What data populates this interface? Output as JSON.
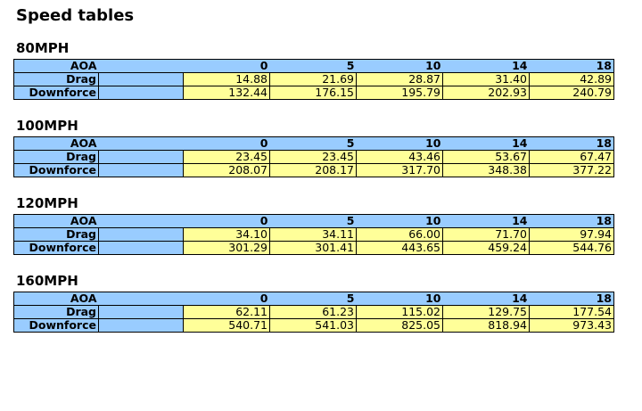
{
  "title": "Speed tables",
  "sections": [
    {
      "heading": "80MPH",
      "header_label": "AOA",
      "columns": [
        "0",
        "5",
        "10",
        "14",
        "18"
      ],
      "rows": [
        {
          "label": "Drag",
          "values": [
            "14.88",
            "21.69",
            "28.87",
            "31.40",
            "42.89"
          ]
        },
        {
          "label": "Downforce",
          "values": [
            "132.44",
            "176.15",
            "195.79",
            "202.93",
            "240.79"
          ]
        }
      ]
    },
    {
      "heading": "100MPH",
      "header_label": "AOA",
      "columns": [
        "0",
        "5",
        "10",
        "14",
        "18"
      ],
      "rows": [
        {
          "label": "Drag",
          "values": [
            "23.45",
            "23.45",
            "43.46",
            "53.67",
            "67.47"
          ]
        },
        {
          "label": "Downforce",
          "values": [
            "208.07",
            "208.17",
            "317.70",
            "348.38",
            "377.22"
          ]
        }
      ]
    },
    {
      "heading": "120MPH",
      "header_label": "AOA",
      "columns": [
        "0",
        "5",
        "10",
        "14",
        "18"
      ],
      "rows": [
        {
          "label": "Drag",
          "values": [
            "34.10",
            "34.11",
            "66.00",
            "71.70",
            "97.94"
          ]
        },
        {
          "label": "Downforce",
          "values": [
            "301.29",
            "301.41",
            "443.65",
            "459.24",
            "544.76"
          ]
        }
      ]
    },
    {
      "heading": "160MPH",
      "header_label": "AOA",
      "columns": [
        "0",
        "5",
        "10",
        "14",
        "18"
      ],
      "rows": [
        {
          "label": "Drag",
          "values": [
            "62.11",
            "61.23",
            "115.02",
            "129.75",
            "177.54"
          ]
        },
        {
          "label": "Downforce",
          "values": [
            "540.71",
            "541.03",
            "825.05",
            "818.94",
            "973.43"
          ]
        }
      ]
    }
  ]
}
